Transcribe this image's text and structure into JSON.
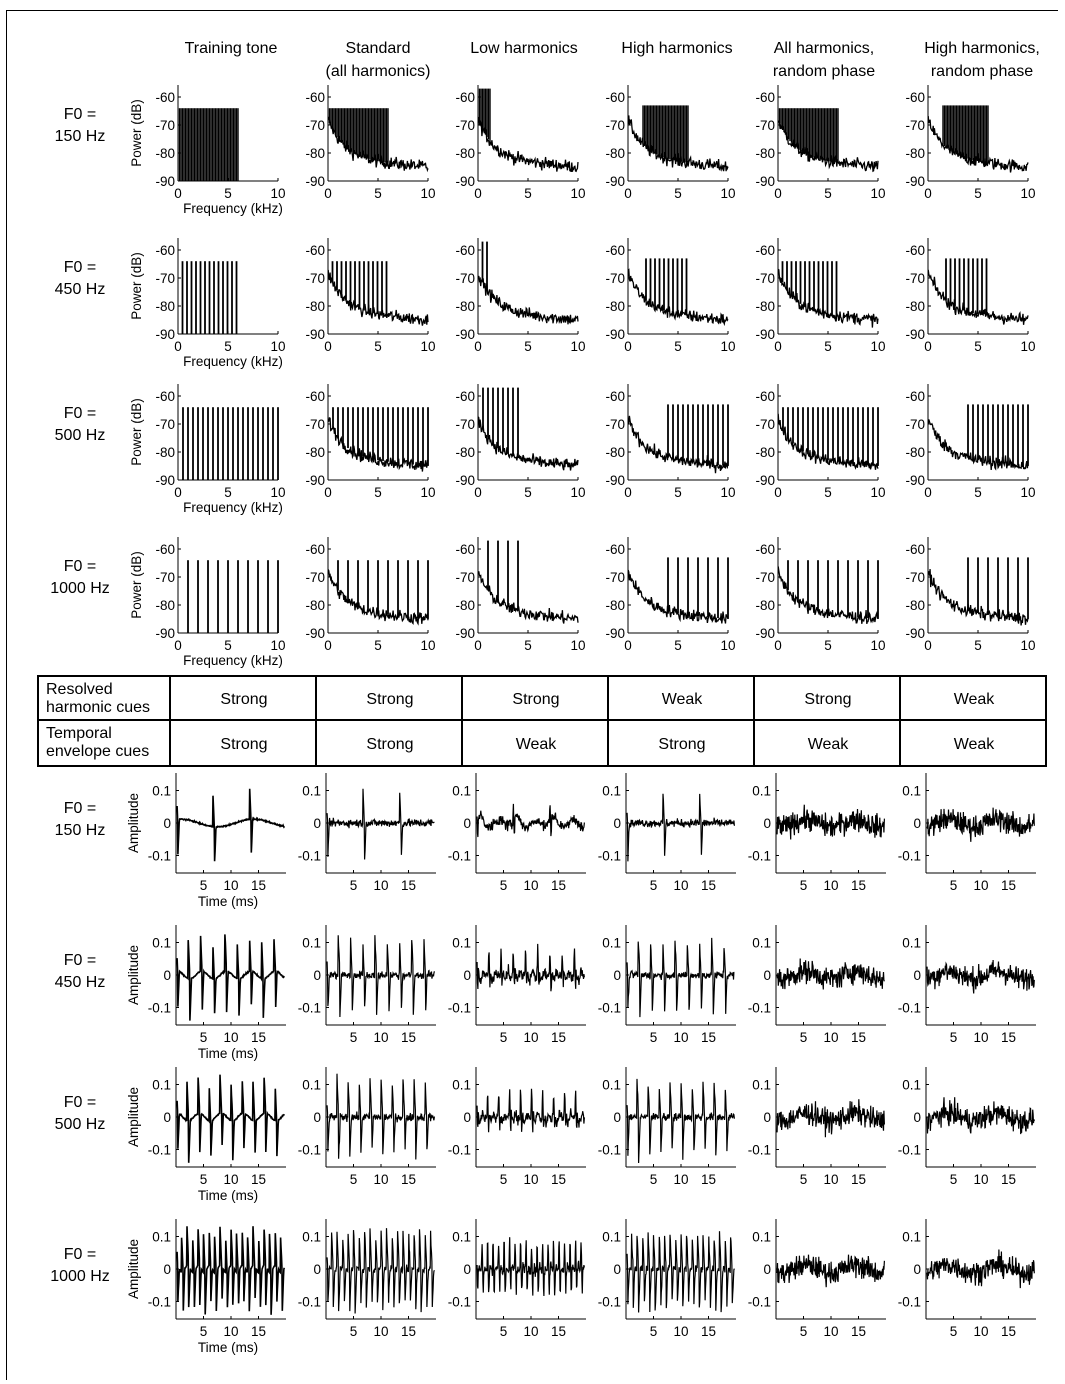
{
  "column_headers": [
    [
      "Training tone"
    ],
    [
      "Standard",
      "(all harmonics)"
    ],
    [
      "Low harmonics"
    ],
    [
      "High harmonics"
    ],
    [
      "All harmonics,",
      "random phase"
    ],
    [
      "High harmonics,",
      "random phase"
    ]
  ],
  "spectrum_rows": [
    [
      "F0 =",
      "150 Hz"
    ],
    [
      "F0 =",
      "450 Hz"
    ],
    [
      "F0 =",
      "500 Hz"
    ],
    [
      "F0 =",
      "1000 Hz"
    ]
  ],
  "waveform_rows": [
    [
      "F0 =",
      "150 Hz"
    ],
    [
      "F0 =",
      "450 Hz"
    ],
    [
      "F0 =",
      "500 Hz"
    ],
    [
      "F0 =",
      "1000 Hz"
    ]
  ],
  "cue_table": {
    "rows": [
      {
        "label": [
          "Resolved",
          "harmonic cues"
        ],
        "values": [
          "Strong",
          "Strong",
          "Strong",
          "Weak",
          "Strong",
          "Weak"
        ]
      },
      {
        "label": [
          "Temporal",
          "envelope cues"
        ],
        "values": [
          "Strong",
          "Strong",
          "Weak",
          "Strong",
          "Weak",
          "Weak"
        ]
      }
    ]
  },
  "chart_data": [
    {
      "type": "line",
      "panel_group": "power spectra",
      "xlabel": "Frequency (kHz)",
      "ylabel": "Power (dB)",
      "xlim": [
        0,
        10
      ],
      "ylim": [
        -90,
        -60
      ],
      "xticks": [
        "0",
        "5",
        "10"
      ],
      "yticks": [
        "-60",
        "-70",
        "-80",
        "-90"
      ],
      "f0_hz": [
        150,
        450,
        500,
        1000
      ],
      "conditions": [
        {
          "harmonic_band_khz": [
            0,
            6
          ],
          "peak_db": -64,
          "noise_floor": false
        },
        {
          "harmonic_band_khz": [
            0,
            6
          ],
          "peak_db": -64,
          "noise_floor": true
        },
        {
          "harmonic_band_khz": [
            0,
            1.3
          ],
          "peak_db": -57,
          "noise_floor": true
        },
        {
          "harmonic_band_khz": [
            1.5,
            6
          ],
          "peak_db": -63,
          "noise_floor": true
        },
        {
          "harmonic_band_khz": [
            0,
            6
          ],
          "peak_db": -64,
          "noise_floor": true
        },
        {
          "harmonic_band_khz": [
            1.5,
            6
          ],
          "peak_db": -63,
          "noise_floor": true
        }
      ],
      "band_by_f0_note_khz": {
        "500": [
          0,
          10
        ],
        "1000": [
          0,
          10
        ]
      }
    },
    {
      "type": "line",
      "panel_group": "waveforms",
      "xlabel": "Time (ms)",
      "ylabel": "Amplitude",
      "xlim": [
        0,
        20
      ],
      "ylim": [
        -0.15,
        0.15
      ],
      "xticks": [
        "5",
        "10",
        "15"
      ],
      "yticks": [
        "0.1",
        "0",
        "-0.1"
      ],
      "f0_hz": [
        150,
        450,
        500,
        1000
      ]
    }
  ],
  "colors": {
    "line": "#000000",
    "background": "#ffffff"
  }
}
